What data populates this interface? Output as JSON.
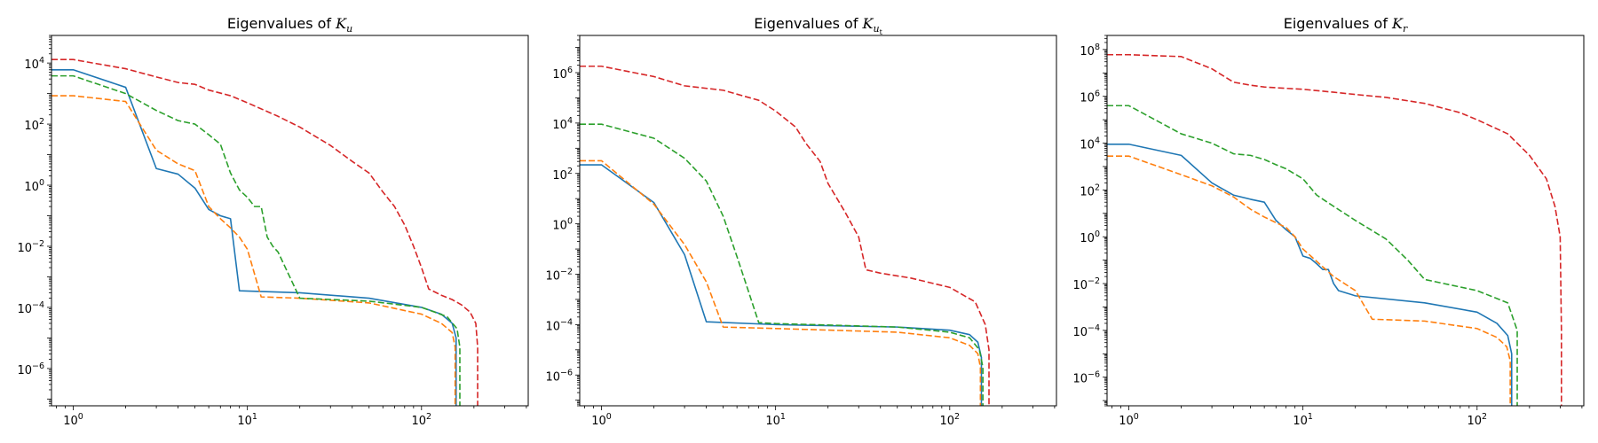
{
  "chart_data": [
    {
      "type": "line",
      "title": "Eigenvalues of ",
      "title_symbol": "K",
      "title_sub": "u",
      "title_subsub": "",
      "xscale": "log",
      "yscale": "log",
      "xlim": [
        0.75,
        410
      ],
      "ylim": [
        6e-08,
        80000
      ],
      "xticks": [
        {
          "base": "10",
          "exp": "0",
          "value": 1
        },
        {
          "base": "10",
          "exp": "1",
          "value": 10
        },
        {
          "base": "10",
          "exp": "2",
          "value": 100
        }
      ],
      "yticks": [
        {
          "base": "10",
          "exp": "4",
          "value": 10000
        },
        {
          "base": "10",
          "exp": "2",
          "value": 100
        },
        {
          "base": "10",
          "exp": "0",
          "value": 1
        },
        {
          "base": "10",
          "exp": "−2",
          "value": 0.01
        },
        {
          "base": "10",
          "exp": "−4",
          "value": 0.0001
        },
        {
          "base": "10",
          "exp": "−6",
          "value": 1e-06
        }
      ],
      "grid": false,
      "series": [
        {
          "color": "#1f77b4",
          "dash": "solid",
          "x": [
            0.75,
            1,
            2,
            3,
            4,
            5,
            6,
            7,
            8,
            9,
            20,
            50,
            100,
            130,
            150,
            158,
            158
          ],
          "y": [
            6000,
            6000,
            1600,
            3.5,
            2.3,
            0.8,
            0.16,
            0.1,
            0.08,
            0.00035,
            0.0003,
            0.0002,
            0.0001,
            6e-05,
            3e-05,
            1e-05,
            6e-08
          ]
        },
        {
          "color": "#ff7f0e",
          "dash": "dashed",
          "x": [
            0.75,
            1,
            2,
            3,
            4,
            5,
            6,
            7,
            8,
            9,
            10,
            12,
            20,
            50,
            100,
            130,
            150,
            156,
            156
          ],
          "y": [
            850,
            850,
            550,
            14,
            5,
            3,
            0.2,
            0.08,
            0.04,
            0.02,
            0.008,
            0.00022,
            0.0002,
            0.00014,
            6e-05,
            3e-05,
            1.5e-05,
            5e-06,
            6e-08
          ]
        },
        {
          "color": "#2ca02c",
          "dash": "dashed",
          "x": [
            0.75,
            1,
            2,
            3,
            4,
            5,
            6,
            7,
            8,
            9,
            10,
            11,
            12,
            13,
            14,
            15,
            20,
            50,
            100,
            140,
            160,
            166,
            166
          ],
          "y": [
            3800,
            3800,
            1000,
            280,
            130,
            100,
            45,
            22,
            2.5,
            0.7,
            0.4,
            0.2,
            0.2,
            0.02,
            0.01,
            0.0065,
            0.0002,
            0.00016,
            0.0001,
            5e-05,
            2e-05,
            5e-06,
            6e-08
          ]
        },
        {
          "color": "#d62728",
          "dash": "dashed",
          "x": [
            0.75,
            1,
            2,
            3,
            4,
            5,
            6,
            8,
            10,
            15,
            20,
            30,
            40,
            50,
            60,
            70,
            80,
            90,
            100,
            110,
            130,
            150,
            170,
            190,
            205,
            210,
            210
          ],
          "y": [
            13000,
            13000,
            6500,
            3500,
            2300,
            2000,
            1300,
            850,
            500,
            180,
            80,
            20,
            6,
            2.5,
            0.6,
            0.2,
            0.05,
            0.01,
            0.002,
            0.0004,
            0.00025,
            0.00018,
            0.00012,
            7e-05,
            3e-05,
            5e-06,
            6e-08
          ]
        }
      ]
    },
    {
      "type": "line",
      "title": "Eigenvalues of ",
      "title_symbol": "K",
      "title_sub": "u",
      "title_subsub": "t",
      "xscale": "log",
      "yscale": "log",
      "xlim": [
        0.75,
        410
      ],
      "ylim": [
        6e-08,
        30000000
      ],
      "xticks": [
        {
          "base": "10",
          "exp": "0",
          "value": 1
        },
        {
          "base": "10",
          "exp": "1",
          "value": 10
        },
        {
          "base": "10",
          "exp": "2",
          "value": 100
        }
      ],
      "yticks": [
        {
          "base": "10",
          "exp": "6",
          "value": 1000000
        },
        {
          "base": "10",
          "exp": "4",
          "value": 10000
        },
        {
          "base": "10",
          "exp": "2",
          "value": 100
        },
        {
          "base": "10",
          "exp": "0",
          "value": 1
        },
        {
          "base": "10",
          "exp": "−2",
          "value": 0.01
        },
        {
          "base": "10",
          "exp": "−4",
          "value": 0.0001
        },
        {
          "base": "10",
          "exp": "−6",
          "value": 1e-06
        }
      ],
      "grid": false,
      "series": [
        {
          "color": "#1f77b4",
          "dash": "solid",
          "x": [
            0.75,
            1,
            2,
            3,
            4,
            10,
            50,
            100,
            130,
            145,
            152,
            152
          ],
          "y": [
            220,
            220,
            7,
            0.06,
            0.00013,
            0.0001,
            8e-05,
            6e-05,
            4e-05,
            2e-05,
            5e-06,
            6e-08
          ]
        },
        {
          "color": "#ff7f0e",
          "dash": "dashed",
          "x": [
            0.75,
            1,
            2,
            3,
            4,
            5,
            10,
            50,
            100,
            130,
            145,
            150,
            150
          ],
          "y": [
            320,
            320,
            6,
            0.15,
            0.005,
            8e-05,
            7e-05,
            5e-05,
            3e-05,
            1.5e-05,
            7e-06,
            2e-06,
            6e-08
          ]
        },
        {
          "color": "#2ca02c",
          "dash": "dashed",
          "x": [
            0.75,
            1,
            2,
            3,
            4,
            5,
            6,
            7,
            8,
            10,
            50,
            100,
            130,
            148,
            155,
            155
          ],
          "y": [
            9000,
            9000,
            2500,
            400,
            50,
            2,
            0.05,
            0.002,
            0.00012,
            0.00011,
            8e-05,
            5e-05,
            3e-05,
            1e-05,
            2e-06,
            6e-08
          ]
        },
        {
          "color": "#d62728",
          "dash": "dashed",
          "x": [
            0.75,
            1,
            2,
            3,
            5,
            8,
            10,
            13,
            15,
            18,
            20,
            25,
            30,
            33,
            40,
            60,
            100,
            140,
            160,
            168,
            168
          ],
          "y": [
            1800000,
            1800000,
            700000,
            300000,
            200000,
            80000,
            30000,
            7000,
            1500,
            300,
            40,
            3,
            0.3,
            0.015,
            0.011,
            0.007,
            0.003,
            0.0008,
            0.0001,
            1e-05,
            6e-08
          ]
        }
      ]
    },
    {
      "type": "line",
      "title": "Eigenvalues of ",
      "title_symbol": "K",
      "title_sub": "r",
      "title_subsub": "",
      "xscale": "log",
      "yscale": "log",
      "xlim": [
        0.75,
        410
      ],
      "ylim": [
        6e-08,
        400000000
      ],
      "xticks": [
        {
          "base": "10",
          "exp": "0",
          "value": 1
        },
        {
          "base": "10",
          "exp": "1",
          "value": 10
        },
        {
          "base": "10",
          "exp": "2",
          "value": 100
        }
      ],
      "yticks": [
        {
          "base": "10",
          "exp": "8",
          "value": 100000000
        },
        {
          "base": "10",
          "exp": "6",
          "value": 1000000
        },
        {
          "base": "10",
          "exp": "4",
          "value": 10000
        },
        {
          "base": "10",
          "exp": "2",
          "value": 100
        },
        {
          "base": "10",
          "exp": "0",
          "value": 1
        },
        {
          "base": "10",
          "exp": "−2",
          "value": 0.01
        },
        {
          "base": "10",
          "exp": "−4",
          "value": 0.0001
        },
        {
          "base": "10",
          "exp": "−6",
          "value": 1e-06
        }
      ],
      "grid": false,
      "series": [
        {
          "color": "#1f77b4",
          "dash": "solid",
          "x": [
            0.75,
            1,
            2,
            3,
            4,
            5,
            6,
            7,
            8,
            9,
            10,
            11,
            12,
            13,
            14,
            15,
            16,
            20,
            50,
            100,
            130,
            150,
            158,
            158
          ],
          "y": [
            9000,
            9000,
            3000,
            200,
            60,
            40,
            30,
            5,
            2,
            1,
            0.15,
            0.12,
            0.07,
            0.04,
            0.04,
            0.01,
            0.005,
            0.003,
            0.0015,
            0.0006,
            0.0002,
            6e-05,
            1e-05,
            6e-08
          ]
        },
        {
          "color": "#ff7f0e",
          "dash": "dashed",
          "x": [
            0.75,
            1,
            2,
            3,
            4,
            5,
            6,
            7,
            8,
            9,
            10,
            15,
            20,
            25,
            50,
            100,
            130,
            148,
            155,
            155
          ],
          "y": [
            2800,
            2800,
            450,
            150,
            50,
            15,
            7,
            4,
            2.5,
            1,
            0.3,
            0.02,
            0.005,
            0.0003,
            0.00025,
            0.00012,
            5e-05,
            2e-05,
            5e-06,
            6e-08
          ]
        },
        {
          "color": "#2ca02c",
          "dash": "dashed",
          "x": [
            0.75,
            1,
            2,
            3,
            4,
            5,
            6,
            7,
            8,
            10,
            12,
            15,
            20,
            30,
            40,
            50,
            100,
            150,
            170,
            170
          ],
          "y": [
            400000,
            400000,
            25000,
            10000,
            3500,
            3000,
            2000,
            1200,
            800,
            300,
            60,
            20,
            5,
            0.8,
            0.1,
            0.015,
            0.005,
            0.0015,
            0.0001,
            6e-08
          ]
        },
        {
          "color": "#d62728",
          "dash": "dashed",
          "x": [
            0.75,
            1,
            2,
            3,
            4,
            5,
            6,
            8,
            10,
            15,
            20,
            30,
            50,
            80,
            100,
            150,
            200,
            250,
            280,
            300,
            305,
            305
          ],
          "y": [
            60000000,
            60000000,
            50000000,
            15000000,
            4000000,
            3000000,
            2500000,
            2200000,
            2000000,
            1500000,
            1200000,
            900000,
            500000,
            200000,
            100000,
            25000,
            3000,
            300,
            20,
            1,
            0.0001,
            6e-08
          ]
        }
      ]
    }
  ]
}
